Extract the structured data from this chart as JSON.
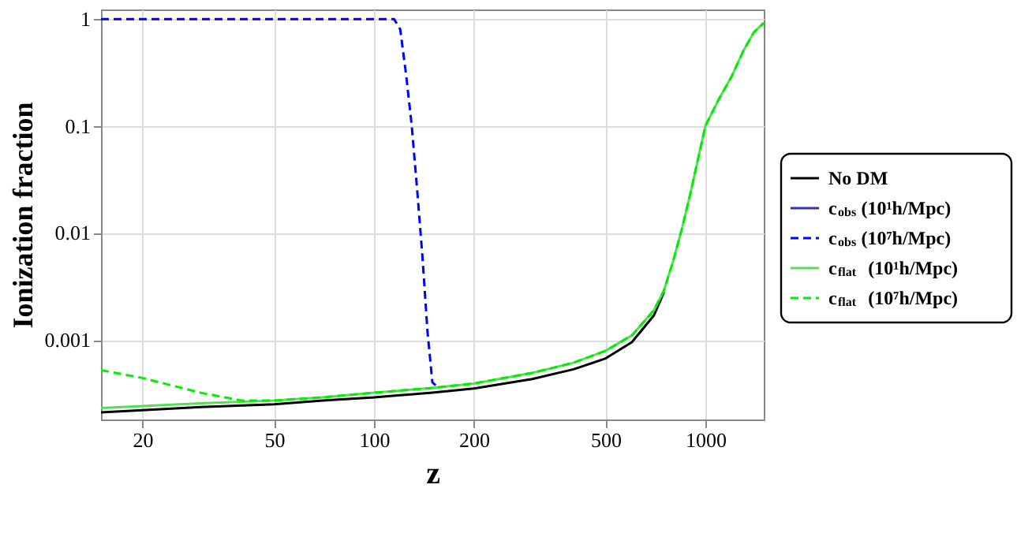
{
  "chart_data": {
    "type": "line",
    "xlabel": "z",
    "ylabel": "Ionization fraction",
    "log": "xy",
    "xlim": [
      15,
      1500
    ],
    "ylim": [
      0.00018,
      1.23
    ],
    "xticks": [
      20,
      50,
      100,
      200,
      500,
      1000
    ],
    "yticks": [
      0.001,
      0.01,
      0.1,
      1
    ],
    "grid": true,
    "legend": "right",
    "series": [
      {
        "name": "No DM",
        "color": "#000000",
        "line_style": "solid",
        "x": [
          15,
          20,
          30,
          50,
          70,
          100,
          150,
          200,
          300,
          400,
          500,
          600,
          700,
          750
        ],
        "values": [
          0.00021,
          0.00022,
          0.000235,
          0.00025,
          0.00027,
          0.00029,
          0.00032,
          0.00035,
          0.00043,
          0.00053,
          0.00067,
          0.00095,
          0.0017,
          0.0028
        ]
      },
      {
        "name": "c$_{obs}$ (10¹h/Mpc)",
        "color": "#3333aa",
        "line_style": "solid"
      },
      {
        "name": "c$_{obs}$ (10⁷h/Mpc)",
        "color": "#0000ff",
        "line_style": "dashed",
        "x": [
          15,
          115,
          120,
          125,
          130,
          135,
          140,
          145,
          150,
          155
        ],
        "values": [
          1,
          1,
          0.8,
          0.3,
          0.1,
          0.025,
          0.006,
          0.0012,
          0.0004,
          0.000365
        ]
      },
      {
        "name": "c$_{flat}$ (10¹h/Mpc)",
        "color": "#55dd55",
        "line_style": "solid",
        "x": [
          15,
          20,
          30,
          50,
          70,
          100,
          150,
          200,
          300,
          400,
          500,
          600,
          700,
          750,
          800,
          850,
          900,
          1000,
          1100,
          1200,
          1300,
          1400,
          1500
        ],
        "values": [
          0.00023,
          0.00024,
          0.000255,
          0.00027,
          0.00029,
          0.00032,
          0.000355,
          0.00039,
          0.00049,
          0.00061,
          0.00079,
          0.0011,
          0.0019,
          0.0029,
          0.0055,
          0.011,
          0.023,
          0.1,
          0.18,
          0.29,
          0.5,
          0.75,
          0.92
        ]
      },
      {
        "name": "c$_{flat}$ (10⁷h/Mpc)",
        "color": "#00ee00",
        "line_style": "dashed",
        "x": [
          15,
          20,
          30,
          40,
          50,
          70,
          100,
          150,
          200,
          300,
          400,
          500,
          600,
          700,
          750,
          800,
          850,
          900,
          1000,
          1100,
          1200,
          1300,
          1400,
          1500
        ],
        "values": [
          0.00052,
          0.00044,
          0.00032,
          0.00027,
          0.00027,
          0.00029,
          0.00032,
          0.000355,
          0.00039,
          0.00049,
          0.00061,
          0.00079,
          0.0011,
          0.0019,
          0.0029,
          0.0055,
          0.011,
          0.023,
          0.1,
          0.18,
          0.29,
          0.5,
          0.75,
          0.92
        ]
      }
    ]
  }
}
